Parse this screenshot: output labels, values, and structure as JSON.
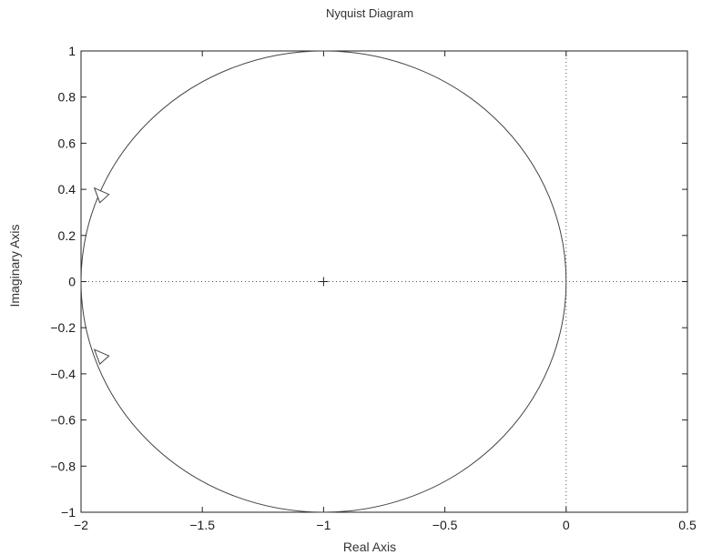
{
  "chart_data": {
    "type": "line",
    "title": "Nyquist Diagram",
    "xlabel": "Real Axis",
    "ylabel": "Imaginary Axis",
    "xlim": [
      -2,
      0.5
    ],
    "ylim": [
      -1,
      1
    ],
    "xticks": [
      -2,
      -1.5,
      -1,
      -0.5,
      0,
      0.5
    ],
    "xtick_labels": [
      "−2",
      "−1.5",
      "−1",
      "−0.5",
      "0",
      "0.5"
    ],
    "yticks": [
      1,
      0.8,
      0.6,
      0.4,
      0.2,
      0,
      -0.2,
      -0.4,
      -0.6,
      -0.8,
      -1
    ],
    "ytick_labels": [
      "1",
      "0.8",
      "0.6",
      "0.4",
      "0.2",
      "0",
      "−0.2",
      "−0.4",
      "−0.6",
      "−0.8",
      "−1"
    ],
    "grid": false,
    "series": [
      {
        "shape": "circle",
        "center": [
          -1,
          0
        ],
        "radius": 1,
        "color": "#444444"
      }
    ],
    "critical_point": [
      -1,
      0
    ],
    "reference_lines": {
      "horizontal_at_y": 0,
      "vertical_at_x": 0,
      "style": "dotted"
    },
    "direction_arrows": [
      {
        "x": -1.93,
        "y": 0.37,
        "direction": "down"
      },
      {
        "x": -1.93,
        "y": -0.33,
        "direction": "down"
      }
    ]
  }
}
